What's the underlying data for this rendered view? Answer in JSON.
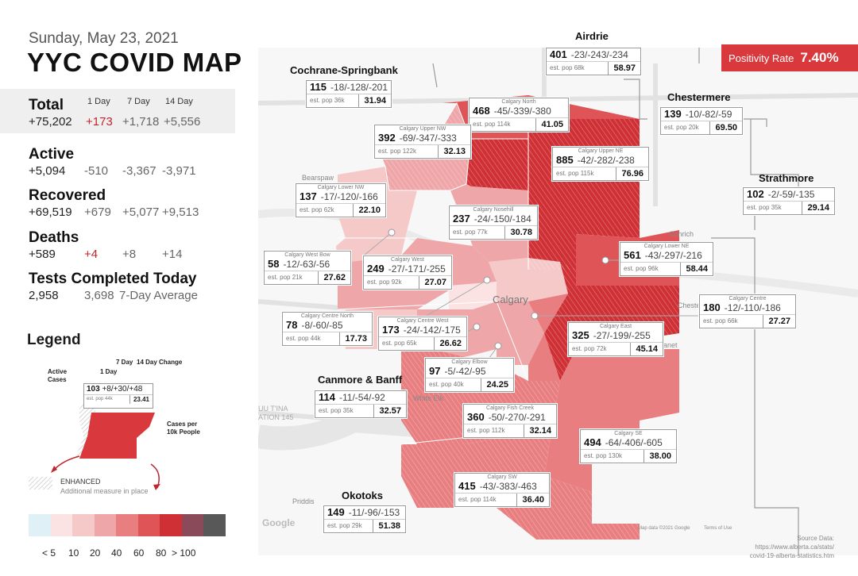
{
  "header": {
    "date": "Sunday, May 23, 2021",
    "title": "YYC COVID MAP"
  },
  "columns": {
    "d1": "1 Day",
    "d7": "7 Day",
    "d14": "14 Day"
  },
  "total": {
    "label": "Total",
    "value": "+75,202",
    "d1": "+173",
    "d7": "+1,718",
    "d14": "+5,556"
  },
  "active": {
    "label": "Active",
    "value": "+5,094",
    "d1": "-510",
    "d7": "-3,367",
    "d14": "-3,971"
  },
  "recovered": {
    "label": "Recovered",
    "value": "+69,519",
    "d1": "+679",
    "d7": "+5,077",
    "d14": "+9,513"
  },
  "deaths": {
    "label": "Deaths",
    "value": "+589",
    "d1": "+4",
    "d7": "+8",
    "d14": "+14"
  },
  "tests": {
    "label": "Tests Completed Today",
    "value": "2,958",
    "avg": "3,698",
    "avg_label": "7-Day Average"
  },
  "legend": {
    "title": "Legend",
    "h_7day": "7 Day",
    "h_14day": "14 Day Change",
    "h_1day": "1 Day",
    "h_active": "Active",
    "h_cases": "Cases",
    "sample_active": "103",
    "sample_changes": "+8/+30/+48",
    "sample_pop": "est. pop 44k",
    "sample_rate": "23.41",
    "per10k_1": "Cases per",
    "per10k_2": "10k People",
    "enhanced": "ENHANCED",
    "enhanced_sub": "Additional measure in place",
    "scale_colors": [
      "#dff0f7",
      "#fbe3e3",
      "#f6c9c9",
      "#efa6a8",
      "#e87e80",
      "#de5457",
      "#cf3035",
      "#8a4a5a",
      "#585858"
    ],
    "scale_labels": [
      "< 5",
      "10",
      "20",
      "40",
      "60",
      "80",
      "> 100"
    ]
  },
  "positivity": {
    "label": "Positivity Rate",
    "value": "7.40%"
  },
  "map_labels": {
    "calgary": "Calgary",
    "conrich": "Conrich",
    "bearspaw": "Bearspaw",
    "whiteelk": "White Elk",
    "priddis": "Priddis",
    "google": "Google",
    "mapdata": "Map data ©2021 Google",
    "terms": "Terms of Use",
    "cheste": "Cheste",
    "anet": "anet",
    "tsuu": "UU T'INA",
    "tion": "ATION 145"
  },
  "source": {
    "l1": "Source Data:",
    "l2": "https://www.alberta.ca/stats/",
    "l3": "covid-19-alberta-statistics.htm"
  },
  "regions": [
    {
      "title": "Airdrie",
      "active": "401",
      "chg": "-23/-243/-234",
      "pop": "est. pop 68k",
      "rate": "58.97"
    },
    {
      "title": "Cochrane-Springbank",
      "active": "115",
      "chg": "-18/-128/-201",
      "pop": "est. pop 36k",
      "rate": "31.94"
    },
    {
      "title": "Chestermere",
      "active": "139",
      "chg": "-10/-82/-59",
      "pop": "est. pop 20k",
      "rate": "69.50"
    },
    {
      "title": "Strathmore",
      "active": "102",
      "chg": "-2/-59/-135",
      "pop": "est. pop 35k",
      "rate": "29.14"
    },
    {
      "name": "Calgary North",
      "active": "468",
      "chg": "-45/-339/-380",
      "pop": "est. pop 114k",
      "rate": "41.05"
    },
    {
      "name": "Calgary Upper NW",
      "active": "392",
      "chg": "-69/-347/-333",
      "pop": "est. pop 122k",
      "rate": "32.13"
    },
    {
      "name": "Calgary Upper NE",
      "active": "885",
      "chg": "-42/-282/-238",
      "pop": "est. pop 115k",
      "rate": "76.96"
    },
    {
      "name": "Calgary Lower NW",
      "active": "137",
      "chg": "-17/-120/-166",
      "pop": "est. pop 62k",
      "rate": "22.10"
    },
    {
      "name": "Calgary Nosehill",
      "active": "237",
      "chg": "-24/-150/-184",
      "pop": "est. pop 77k",
      "rate": "30.78"
    },
    {
      "name": "Calgary West Bow",
      "active": "58",
      "chg": "-12/-63/-56",
      "pop": "est. pop 21k",
      "rate": "27.62"
    },
    {
      "name": "Calgary West",
      "active": "249",
      "chg": "-27/-171/-255",
      "pop": "est. pop 92k",
      "rate": "27.07"
    },
    {
      "name": "Calgary Lower NE",
      "active": "561",
      "chg": "-43/-297/-216",
      "pop": "est. pop 96k",
      "rate": "58.44"
    },
    {
      "name": "Calgary Centre",
      "active": "180",
      "chg": "-12/-110/-186",
      "pop": "est. pop 66k",
      "rate": "27.27"
    },
    {
      "name": "Calgary Centre North",
      "active": "78",
      "chg": "-8/-60/-85",
      "pop": "est. pop 44k",
      "rate": "17.73"
    },
    {
      "name": "Calgary Centre West",
      "active": "173",
      "chg": "-24/-142/-175",
      "pop": "est. pop 65k",
      "rate": "26.62"
    },
    {
      "name": "Calgary East",
      "active": "325",
      "chg": "-27/-199/-255",
      "pop": "est. pop 72k",
      "rate": "45.14"
    },
    {
      "name": "Calgary Elbow",
      "active": "97",
      "chg": "-5/-42/-95",
      "pop": "est. pop 40k",
      "rate": "24.25"
    },
    {
      "title": "Canmore & Banff",
      "active": "114",
      "chg": "-11/-54/-92",
      "pop": "est. pop 35k",
      "rate": "32.57"
    },
    {
      "name": "Calgary Fish Creek",
      "active": "360",
      "chg": "-50/-270/-291",
      "pop": "est. pop 112k",
      "rate": "32.14"
    },
    {
      "name": "Calgary SE",
      "active": "494",
      "chg": "-64/-406/-605",
      "pop": "est. pop 130k",
      "rate": "38.00"
    },
    {
      "name": "Calgary SW",
      "active": "415",
      "chg": "-43/-383/-463",
      "pop": "est. pop 114k",
      "rate": "36.40"
    },
    {
      "title": "Okotoks",
      "active": "149",
      "chg": "-11/-96/-153",
      "pop": "est. pop 29k",
      "rate": "51.38"
    }
  ]
}
